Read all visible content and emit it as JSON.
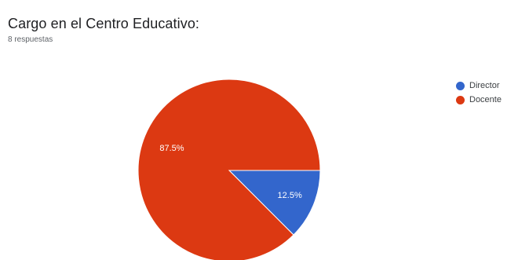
{
  "header": {
    "title": "Cargo en el Centro Educativo:",
    "subtitle": "8 respuestas"
  },
  "chart_data": {
    "type": "pie",
    "categories": [
      "Director",
      "Docente"
    ],
    "values": [
      12.5,
      87.5
    ],
    "labels": [
      "12.5%",
      "87.5%"
    ],
    "colors": [
      "#3366cc",
      "#dc3912"
    ],
    "legend_position": "right"
  }
}
